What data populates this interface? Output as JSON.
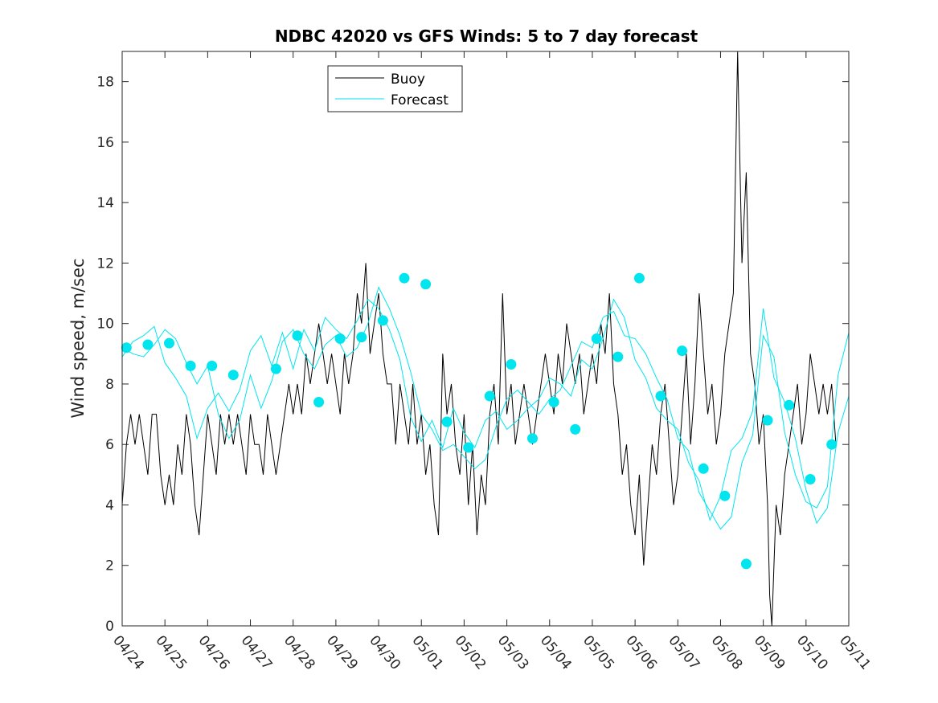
{
  "chart_data": {
    "type": "line",
    "title": "NDBC 42020 vs GFS Winds: 5 to 7 day forecast",
    "xlabel": "",
    "ylabel": "Wind speed, m/sec",
    "xlim": [
      "04/24",
      "05/11"
    ],
    "ylim": [
      0,
      19
    ],
    "x_tick_labels": [
      "04/24",
      "04/25",
      "04/26",
      "04/27",
      "04/28",
      "04/29",
      "04/30",
      "05/01",
      "05/02",
      "05/03",
      "05/04",
      "05/05",
      "05/06",
      "05/07",
      "05/08",
      "05/09",
      "05/10",
      "05/11"
    ],
    "y_ticks": [
      0,
      2,
      4,
      6,
      8,
      10,
      12,
      14,
      16,
      18
    ],
    "legend": {
      "placement": "top-left",
      "entries": [
        "Buoy",
        "Forecast"
      ]
    },
    "colors": {
      "buoy": "#000000",
      "forecast": "#00e5ee"
    },
    "series": [
      {
        "name": "Buoy",
        "day_offsets": [
          0.0,
          0.1,
          0.2,
          0.3,
          0.4,
          0.5,
          0.6,
          0.7,
          0.8,
          0.9,
          1.0,
          1.1,
          1.2,
          1.3,
          1.4,
          1.5,
          1.6,
          1.7,
          1.8,
          1.9,
          2.0,
          2.1,
          2.2,
          2.3,
          2.4,
          2.5,
          2.6,
          2.7,
          2.8,
          2.9,
          3.0,
          3.1,
          3.2,
          3.3,
          3.4,
          3.5,
          3.6,
          3.7,
          3.8,
          3.9,
          4.0,
          4.1,
          4.2,
          4.3,
          4.4,
          4.5,
          4.6,
          4.7,
          4.8,
          4.9,
          5.0,
          5.1,
          5.2,
          5.3,
          5.4,
          5.5,
          5.6,
          5.7,
          5.8,
          5.9,
          6.0,
          6.1,
          6.2,
          6.3,
          6.4,
          6.5,
          6.6,
          6.7,
          6.8,
          6.9,
          7.0,
          7.1,
          7.2,
          7.3,
          7.4,
          7.5,
          7.6,
          7.7,
          7.8,
          7.9,
          8.0,
          8.1,
          8.2,
          8.3,
          8.4,
          8.5,
          8.6,
          8.7,
          8.8,
          8.9,
          9.0,
          9.1,
          9.2,
          9.3,
          9.4,
          9.5,
          9.6,
          9.7,
          9.8,
          9.9,
          10.0,
          10.1,
          10.2,
          10.3,
          10.4,
          10.5,
          10.6,
          10.7,
          10.8,
          10.9,
          11.0,
          11.1,
          11.2,
          11.3,
          11.4,
          11.5,
          11.6,
          11.7,
          11.8,
          11.9,
          12.0,
          12.1,
          12.2,
          12.3,
          12.4,
          12.5,
          12.6,
          12.7,
          12.8,
          12.9,
          13.0,
          13.1,
          13.2,
          13.3,
          13.4,
          13.5,
          13.6,
          13.7,
          13.8,
          13.9,
          14.0,
          14.1,
          14.2,
          14.3,
          14.4,
          14.5,
          14.6,
          14.7,
          14.8,
          14.9,
          15.0,
          15.1,
          15.15,
          15.2,
          15.25,
          15.3,
          15.4,
          15.5,
          15.6,
          15.7,
          15.8,
          15.9,
          16.0,
          16.1,
          16.2,
          16.3,
          16.4,
          16.5,
          16.6,
          16.7,
          16.8,
          16.9,
          17.0
        ],
        "values": [
          4,
          6,
          7,
          6,
          7,
          6,
          5,
          7,
          7,
          5,
          4,
          5,
          4,
          6,
          5,
          7,
          6,
          4,
          3,
          5,
          7,
          6,
          5,
          7,
          6,
          7,
          6,
          7,
          6,
          5,
          7,
          6,
          6,
          5,
          7,
          6,
          5,
          6,
          7,
          8,
          7,
          8,
          7,
          9,
          8,
          9,
          10,
          9,
          8,
          9,
          8,
          7,
          9,
          8,
          9,
          11,
          10,
          12,
          9,
          10,
          11,
          9,
          8,
          8,
          6,
          8,
          7,
          6,
          8,
          6,
          7,
          5,
          6,
          4,
          3,
          9,
          7,
          8,
          6,
          5,
          7,
          4,
          6,
          3,
          5,
          4,
          7,
          8,
          6,
          11,
          7,
          8,
          6,
          7,
          8,
          7,
          6,
          7,
          8,
          9,
          8,
          7,
          9,
          8,
          10,
          9,
          8,
          9,
          7,
          8,
          9,
          8,
          10,
          9,
          11,
          8,
          7,
          5,
          6,
          4,
          3,
          5,
          2,
          4,
          6,
          5,
          7,
          8,
          6,
          4,
          5,
          7,
          9,
          6,
          8,
          11,
          9,
          7,
          8,
          6,
          7,
          9,
          10,
          11,
          19,
          12,
          15,
          9,
          8,
          6,
          7,
          4,
          1,
          0,
          2,
          4,
          3,
          5,
          6,
          7,
          8,
          6,
          7,
          9,
          8,
          7,
          8,
          7,
          8,
          6
        ]
      },
      {
        "name": "Forecast",
        "day_offsets": [
          0.0,
          0.25,
          0.5,
          0.75,
          1.0,
          1.25,
          1.5,
          1.75,
          2.0,
          2.25,
          2.5,
          2.75,
          3.0,
          3.25,
          3.5,
          3.75,
          4.0,
          4.25,
          4.5,
          4.75,
          5.0,
          5.25,
          5.5,
          5.75,
          6.0,
          6.25,
          6.5,
          6.75,
          7.0,
          7.25,
          7.5,
          7.75,
          8.0,
          8.25,
          8.5,
          8.75,
          9.0,
          9.25,
          9.5,
          9.75,
          10.0,
          10.25,
          10.5,
          10.75,
          11.0,
          11.25,
          11.5,
          11.75,
          12.0,
          12.25,
          12.5,
          12.75,
          13.0,
          13.25,
          13.5,
          13.75,
          14.0,
          14.25,
          14.5,
          14.75,
          15.0,
          15.25,
          15.5,
          15.75,
          16.0,
          16.25,
          16.5,
          16.75,
          17.0
        ],
        "values": [
          9.2,
          9.0,
          8.9,
          9.3,
          9.8,
          9.5,
          8.7,
          8.0,
          8.6,
          7.0,
          6.2,
          6.8,
          8.3,
          7.2,
          8.1,
          9.4,
          9.8,
          9.0,
          8.5,
          9.3,
          9.6,
          8.9,
          9.2,
          10.0,
          11.2,
          10.5,
          9.6,
          8.4,
          7.0,
          6.5,
          5.8,
          6.0,
          5.6,
          5.2,
          5.5,
          6.6,
          7.5,
          7.8,
          7.4,
          7.0,
          7.5,
          7.8,
          8.6,
          9.4,
          9.2,
          10.2,
          10.4,
          9.6,
          9.5,
          9.0,
          8.2,
          7.5,
          6.2,
          5.8,
          4.4,
          3.8,
          3.2,
          3.6,
          5.4,
          6.3,
          9.6,
          8.9,
          6.4,
          5.0,
          4.1,
          3.9,
          4.6,
          8.3,
          9.7
        ]
      },
      {
        "name": "",
        "day_offsets": [
          0.0,
          0.25,
          0.5,
          0.75,
          1.0,
          1.25,
          1.5,
          1.75,
          2.0,
          2.25,
          2.5,
          2.75,
          3.0,
          3.25,
          3.5,
          3.75,
          4.0,
          4.25,
          4.5,
          4.75,
          5.0,
          5.25,
          5.5,
          5.75,
          6.0,
          6.25,
          6.5,
          6.75,
          7.0,
          7.25,
          7.5,
          7.75,
          8.0,
          8.25,
          8.5,
          8.75,
          9.0,
          9.25,
          9.5,
          9.75,
          10.0,
          10.25,
          10.5,
          10.75,
          11.0,
          11.25,
          11.5,
          11.75,
          12.0,
          12.25,
          12.5,
          12.75,
          13.0,
          13.25,
          13.5,
          13.75,
          14.0,
          14.25,
          14.5,
          14.75,
          15.0,
          15.25,
          15.5,
          15.75,
          16.0,
          16.25,
          16.5,
          16.75,
          17.0
        ],
        "values": [
          8.9,
          9.4,
          9.6,
          9.9,
          8.7,
          8.2,
          7.6,
          6.2,
          7.2,
          7.7,
          7.1,
          7.8,
          9.1,
          9.6,
          8.6,
          9.7,
          8.5,
          9.8,
          9.1,
          10.2,
          9.8,
          9.5,
          10.1,
          10.8,
          10.5,
          9.8,
          8.8,
          6.9,
          6.1,
          6.8,
          5.9,
          7.2,
          6.4,
          5.9,
          6.8,
          7.1,
          6.5,
          6.8,
          7.2,
          7.5,
          8.2,
          8.0,
          7.6,
          8.8,
          8.5,
          9.5,
          10.8,
          10.2,
          8.8,
          8.2,
          7.2,
          6.8,
          6.5,
          5.4,
          4.8,
          3.5,
          4.3,
          5.8,
          6.2,
          7.1,
          10.5,
          8.2,
          7.4,
          6.2,
          4.5,
          3.4,
          3.9,
          6.4,
          7.6
        ]
      }
    ],
    "forecast_markers": {
      "day_offsets": [
        0.1,
        0.6,
        1.1,
        1.6,
        2.1,
        2.6,
        3.6,
        4.1,
        4.6,
        5.1,
        5.6,
        6.1,
        6.6,
        7.1,
        7.6,
        8.1,
        8.6,
        9.1,
        9.6,
        10.1,
        10.6,
        11.1,
        11.6,
        12.1,
        12.6,
        13.1,
        13.6,
        14.1,
        14.6,
        15.1,
        15.6,
        16.1,
        16.6
      ],
      "values": [
        9.2,
        9.3,
        9.35,
        8.6,
        8.6,
        8.3,
        8.5,
        9.6,
        7.4,
        9.5,
        9.55,
        10.1,
        11.5,
        11.3,
        6.75,
        5.9,
        7.6,
        8.65,
        6.2,
        7.4,
        6.5,
        9.5,
        8.9,
        11.5,
        7.6,
        9.1,
        5.2,
        4.3,
        2.05,
        6.8,
        7.3,
        4.85,
        6.0
      ]
    }
  }
}
